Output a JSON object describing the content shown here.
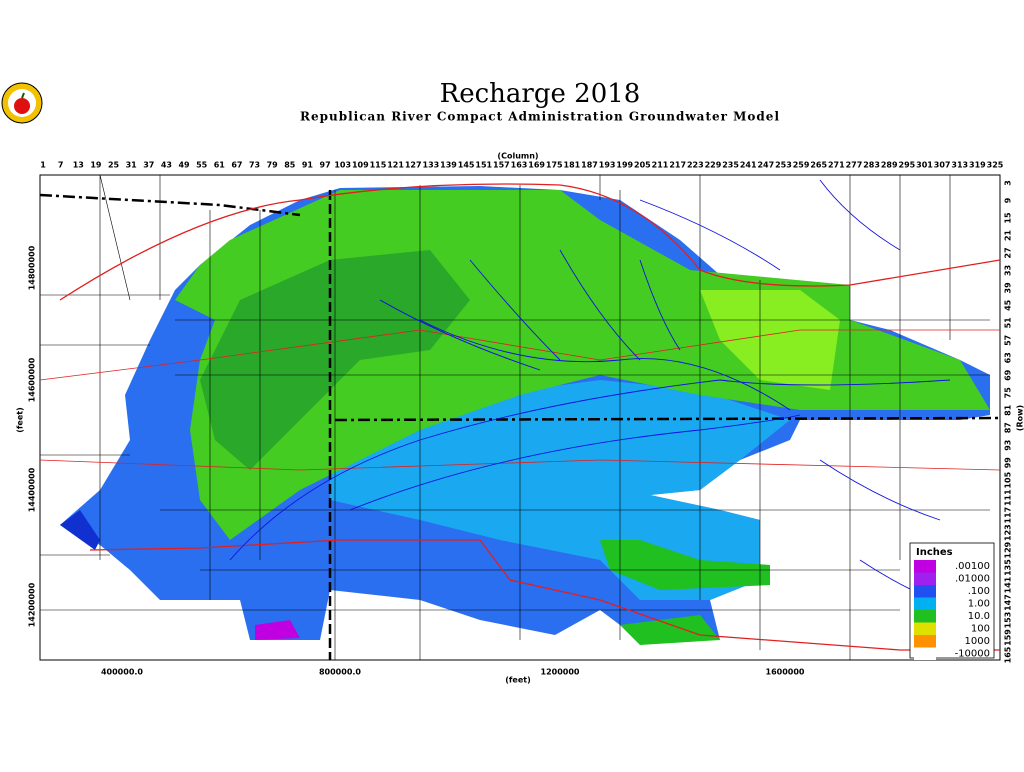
{
  "header": {
    "title": "Recharge 2018",
    "subtitle": "Republican River Compact Administration Groundwater Model"
  },
  "axes": {
    "column_title": "(Column)",
    "row_title": "(Row)",
    "x_title": "(feet)",
    "y_title": "(feet)",
    "columns": [
      1,
      7,
      13,
      19,
      25,
      31,
      37,
      43,
      49,
      55,
      61,
      67,
      73,
      79,
      85,
      91,
      97,
      103,
      109,
      115,
      121,
      127,
      133,
      139,
      145,
      151,
      157,
      163,
      169,
      175,
      181,
      187,
      193,
      199,
      205,
      211,
      217,
      223,
      229,
      235,
      241,
      247,
      253,
      259,
      265,
      271,
      277,
      283,
      289,
      295,
      301,
      307,
      313,
      319,
      325
    ],
    "rows": [
      3,
      9,
      15,
      21,
      27,
      33,
      39,
      45,
      51,
      57,
      63,
      69,
      75,
      81,
      87,
      93,
      99,
      105,
      111,
      117,
      123,
      129,
      135,
      141,
      147,
      153,
      159,
      165
    ],
    "x_ticks": [
      "400000.0",
      "800000.0",
      "1200000",
      "1600000"
    ],
    "y_ticks": [
      "14800000",
      "14600000",
      "14400000",
      "14200000"
    ]
  },
  "legend": {
    "title": "Inches",
    "entries": [
      {
        "label": ".00100",
        "color": "#c000e0"
      },
      {
        "label": ".01000",
        "color": "#a020f0"
      },
      {
        "label": ".100",
        "color": "#2050f0"
      },
      {
        "label": "1.00",
        "color": "#00b0f0"
      },
      {
        "label": "10.0",
        "color": "#20c020"
      },
      {
        "label": "100",
        "color": "#e0e000"
      },
      {
        "label": "1000",
        "color": "#ff9000"
      },
      {
        "label": "-10000",
        "color": "#ffffff"
      }
    ]
  }
}
